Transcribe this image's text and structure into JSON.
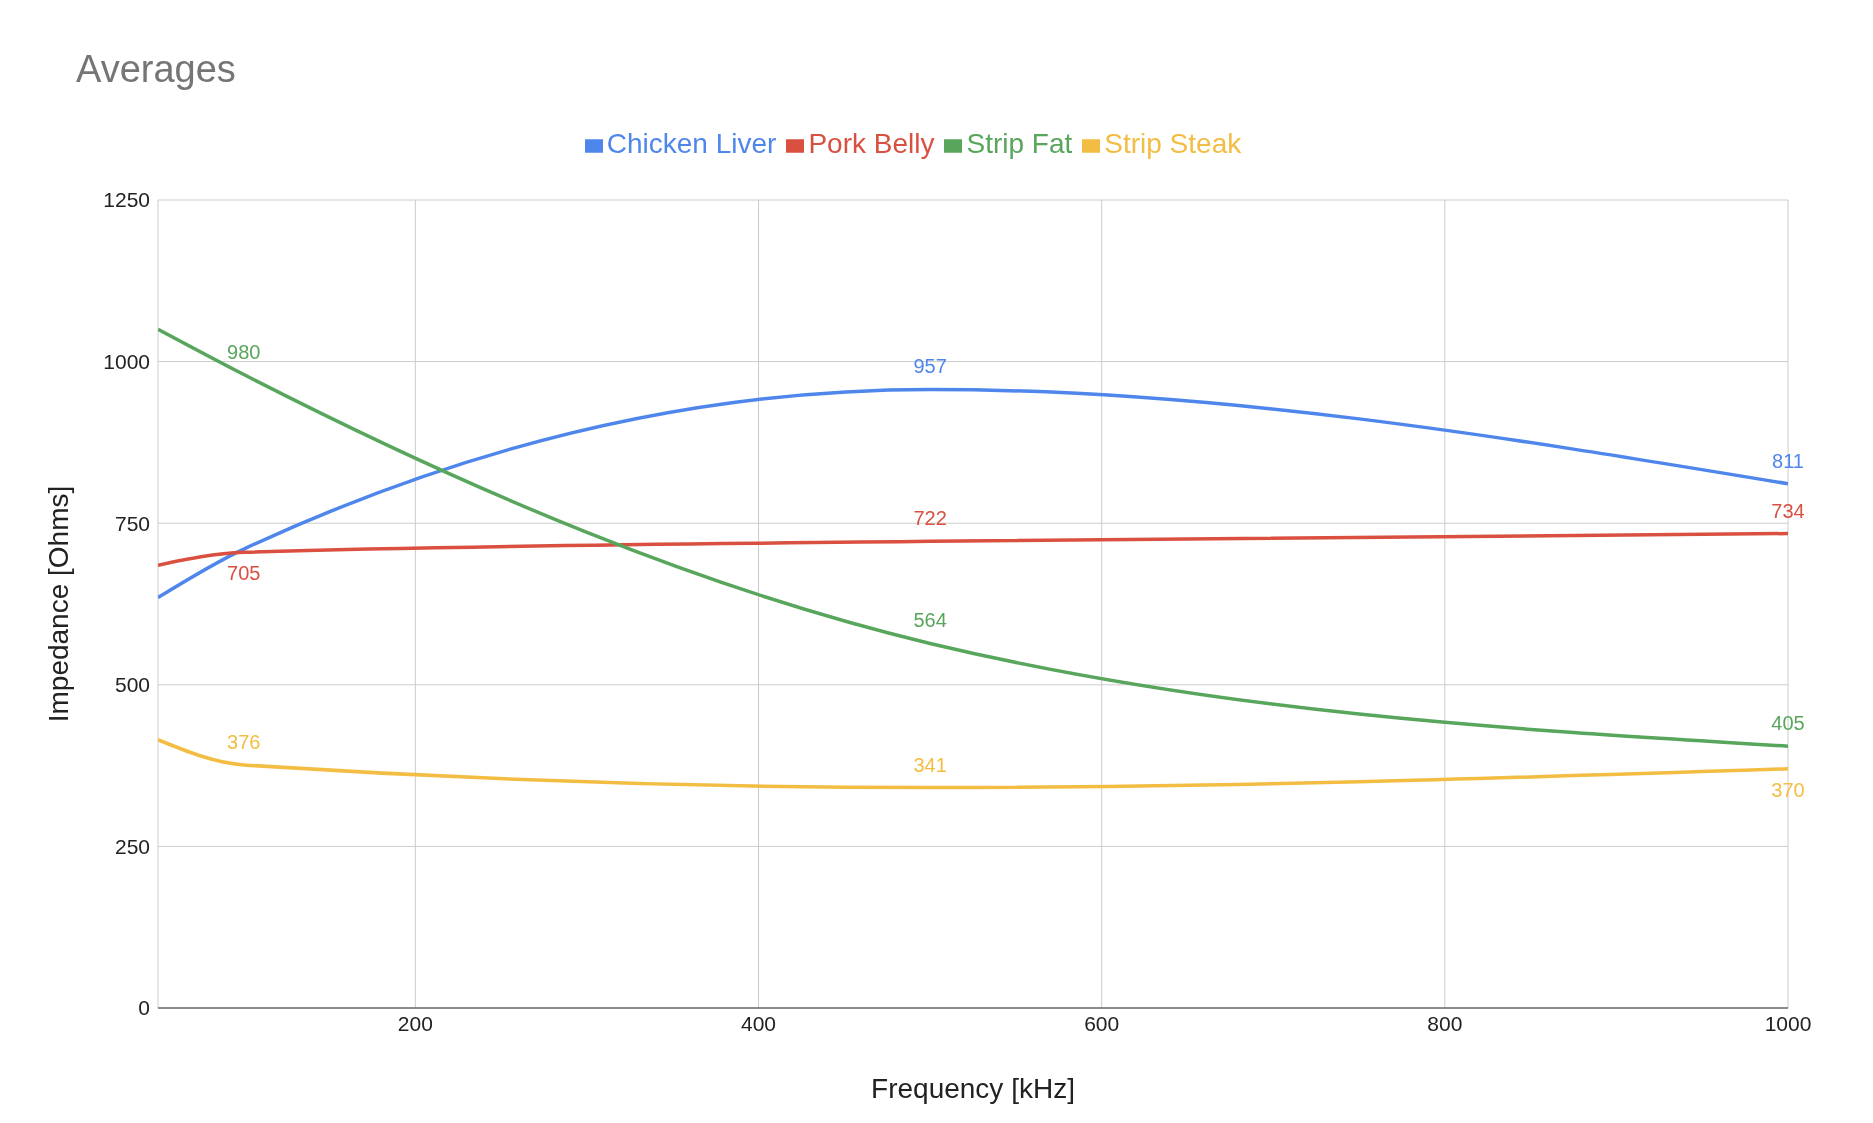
{
  "chart_data": {
    "type": "line",
    "title": "Averages",
    "xlabel": "Frequency [kHz]",
    "ylabel": "Impedance [Ohms]",
    "x": [
      50,
      100,
      500,
      1000
    ],
    "series": [
      {
        "name": "Chicken Liver",
        "color": "#4f86ec",
        "values": [
          635,
          710,
          957,
          811
        ],
        "value_labels": [
          null,
          null,
          "957",
          "811"
        ]
      },
      {
        "name": "Pork Belly",
        "color": "#d95040",
        "values": [
          685,
          705,
          722,
          734
        ],
        "value_labels": [
          null,
          "705",
          "722",
          "734"
        ]
      },
      {
        "name": "Strip Steak",
        "color": "#f2bd42",
        "values": [
          415,
          376,
          341,
          370
        ],
        "value_labels": [
          null,
          "376",
          "341",
          "370"
        ]
      },
      {
        "name": "Strip Fat",
        "color": "#58a55c",
        "values": [
          1050,
          980,
          564,
          405
        ],
        "value_labels": [
          null,
          "980",
          "564",
          "405"
        ]
      }
    ],
    "xlim": [
      50,
      1000
    ],
    "xticks": [
      200,
      400,
      600,
      800,
      1000
    ],
    "ylim": [
      0,
      1250
    ],
    "yticks": [
      0,
      250,
      500,
      750,
      1000,
      1250
    ],
    "grid": true,
    "legend": "top",
    "marker": "none",
    "line_style": "solid"
  }
}
